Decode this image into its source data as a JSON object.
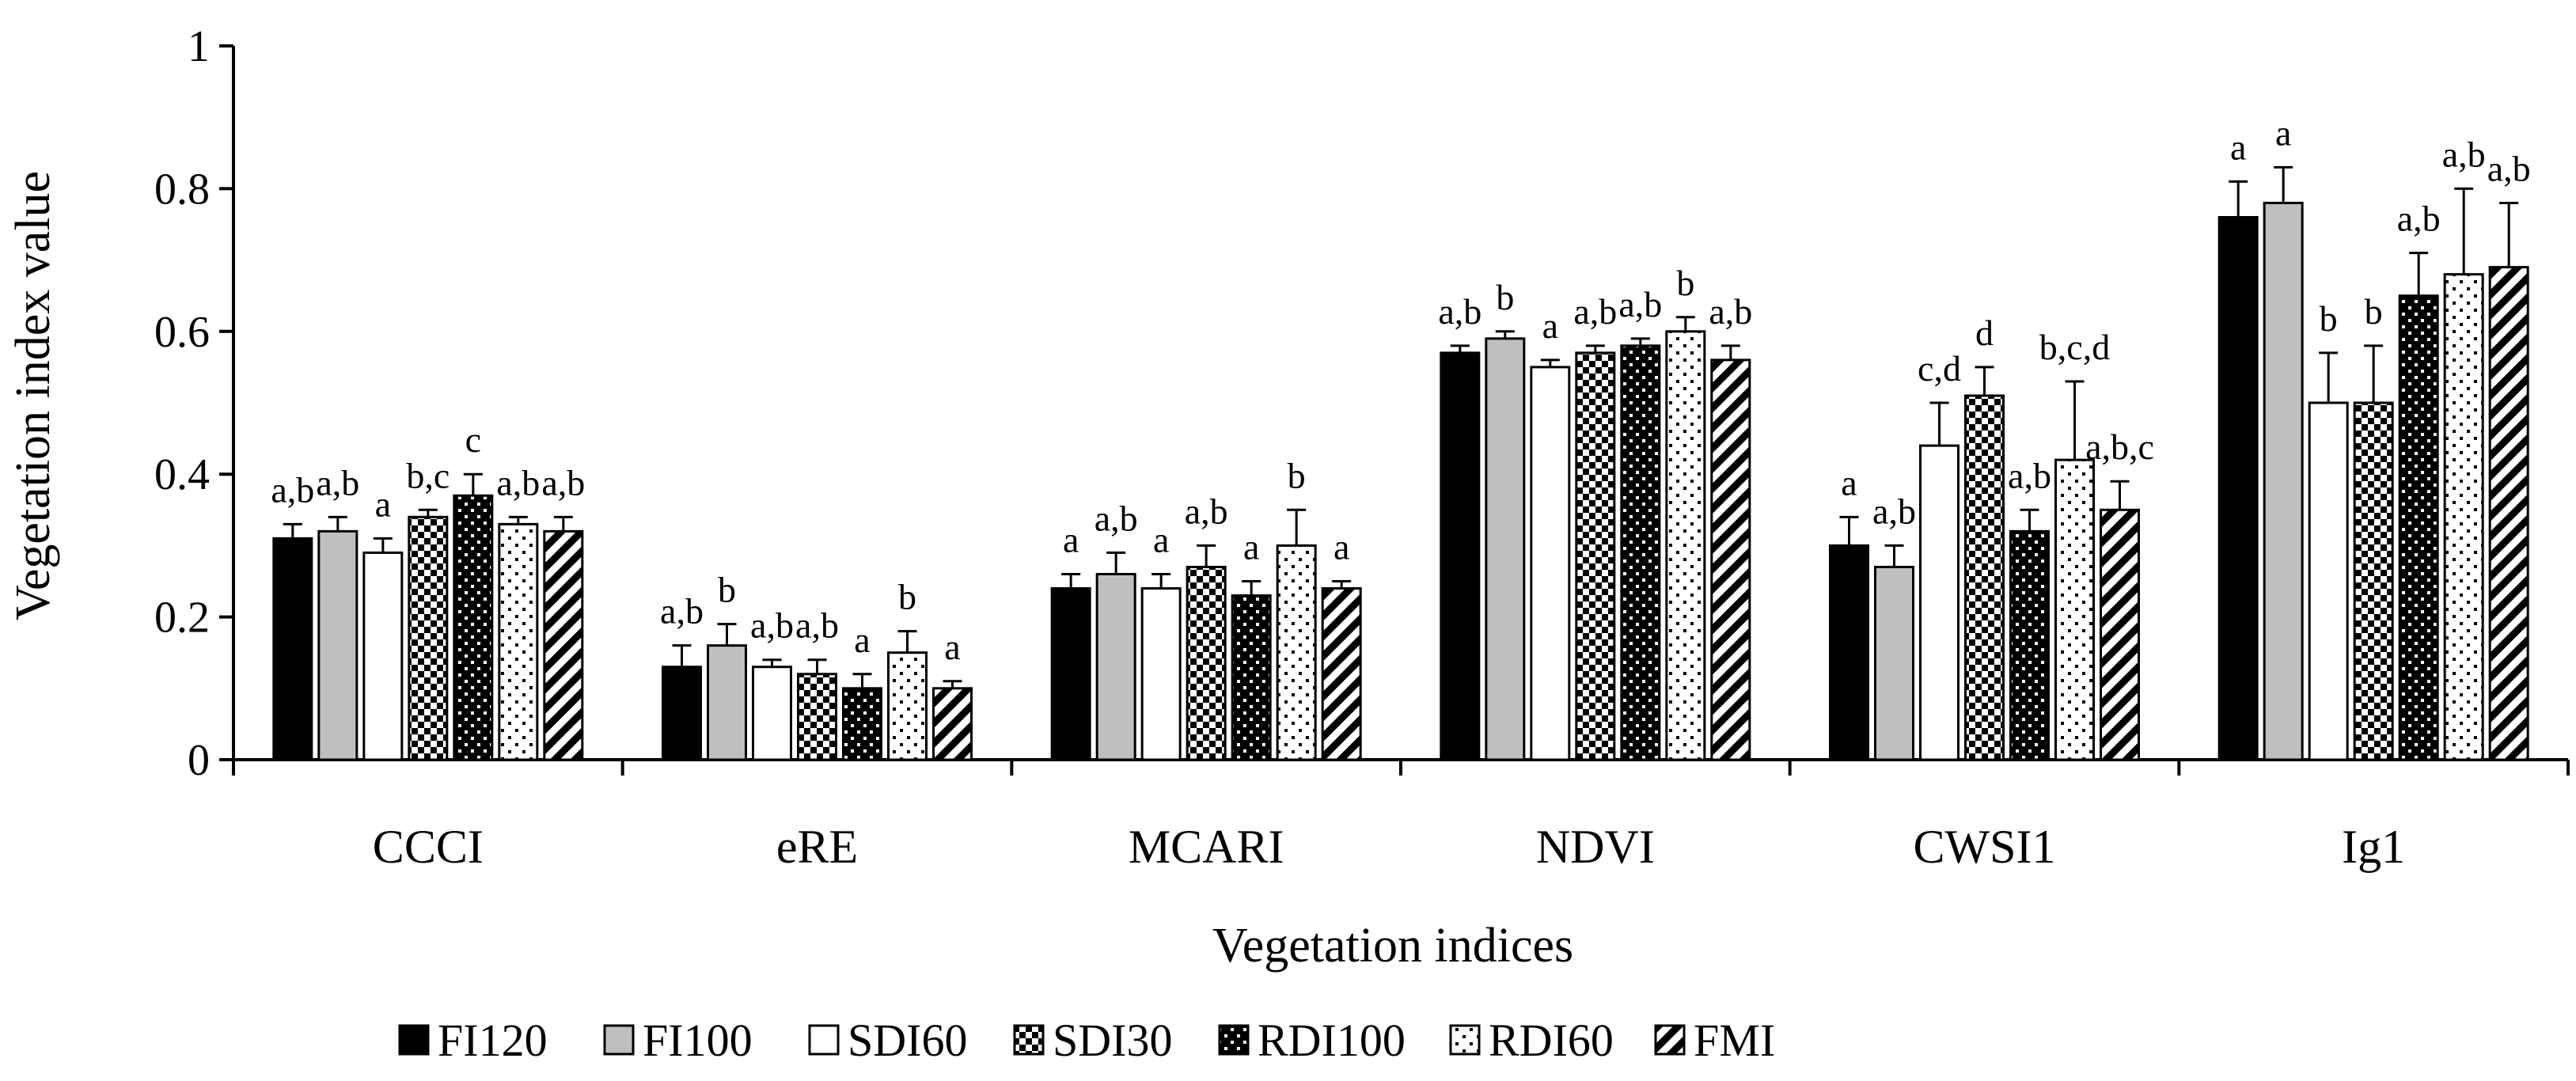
{
  "chart_data": {
    "type": "bar",
    "title": "",
    "xlabel": "Vegetation indices",
    "ylabel": "Vegetation index value",
    "ylim": [
      0,
      1
    ],
    "yticks": [
      0,
      0.2,
      0.4,
      0.6,
      0.8,
      1
    ],
    "ytick_labels": [
      "0",
      "0.2",
      "0.4",
      "0.6",
      "0.8",
      "1"
    ],
    "grid": false,
    "legend_position": "bottom",
    "categories": [
      "CCCI",
      "eRE",
      "MCARI",
      "NDVI",
      "CWSI1",
      "Ig1"
    ],
    "series": [
      {
        "name": "FI120",
        "pattern": "solid-black",
        "values": [
          0.31,
          0.13,
          0.24,
          0.57,
          0.3,
          0.76
        ],
        "errors": [
          0.02,
          0.03,
          0.02,
          0.01,
          0.04,
          0.05
        ],
        "labels": [
          "a,b",
          "a,b",
          "a",
          "a,b",
          "a",
          "a"
        ]
      },
      {
        "name": "FI100",
        "pattern": "solid-gray",
        "values": [
          0.32,
          0.16,
          0.26,
          0.59,
          0.27,
          0.78
        ],
        "errors": [
          0.02,
          0.03,
          0.03,
          0.01,
          0.03,
          0.05
        ],
        "labels": [
          "a,b",
          "b",
          "a,b",
          "b",
          "a,b",
          "a"
        ]
      },
      {
        "name": "SDI60",
        "pattern": "white",
        "values": [
          0.29,
          0.13,
          0.24,
          0.55,
          0.44,
          0.5
        ],
        "errors": [
          0.02,
          0.01,
          0.02,
          0.01,
          0.06,
          0.07
        ],
        "labels": [
          "a",
          "a,b",
          "a",
          "a",
          "c,d",
          "b"
        ]
      },
      {
        "name": "SDI30",
        "pattern": "checker",
        "values": [
          0.34,
          0.12,
          0.27,
          0.57,
          0.51,
          0.5
        ],
        "errors": [
          0.01,
          0.02,
          0.03,
          0.01,
          0.04,
          0.08
        ],
        "labels": [
          "b,c",
          "a,b",
          "a,b",
          "a,b",
          "d",
          "b"
        ]
      },
      {
        "name": "RDI100",
        "pattern": "black-dots",
        "values": [
          0.37,
          0.1,
          0.23,
          0.58,
          0.32,
          0.65
        ],
        "errors": [
          0.03,
          0.02,
          0.02,
          0.01,
          0.03,
          0.06
        ],
        "labels": [
          "c",
          "a",
          "a",
          "a,b",
          "a,b",
          "a,b"
        ]
      },
      {
        "name": "RDI60",
        "pattern": "white-dots",
        "values": [
          0.33,
          0.15,
          0.3,
          0.6,
          0.42,
          0.68
        ],
        "errors": [
          0.01,
          0.03,
          0.05,
          0.02,
          0.11,
          0.12
        ],
        "labels": [
          "a,b",
          "b",
          "b",
          "b",
          "b,c,d",
          "a,b"
        ]
      },
      {
        "name": "FMI",
        "pattern": "diagonal",
        "values": [
          0.32,
          0.1,
          0.24,
          0.56,
          0.35,
          0.69
        ],
        "errors": [
          0.02,
          0.01,
          0.01,
          0.02,
          0.04,
          0.09
        ],
        "labels": [
          "a,b",
          "a",
          "a",
          "a,b",
          "a,b,c",
          "a,b"
        ]
      }
    ]
  }
}
